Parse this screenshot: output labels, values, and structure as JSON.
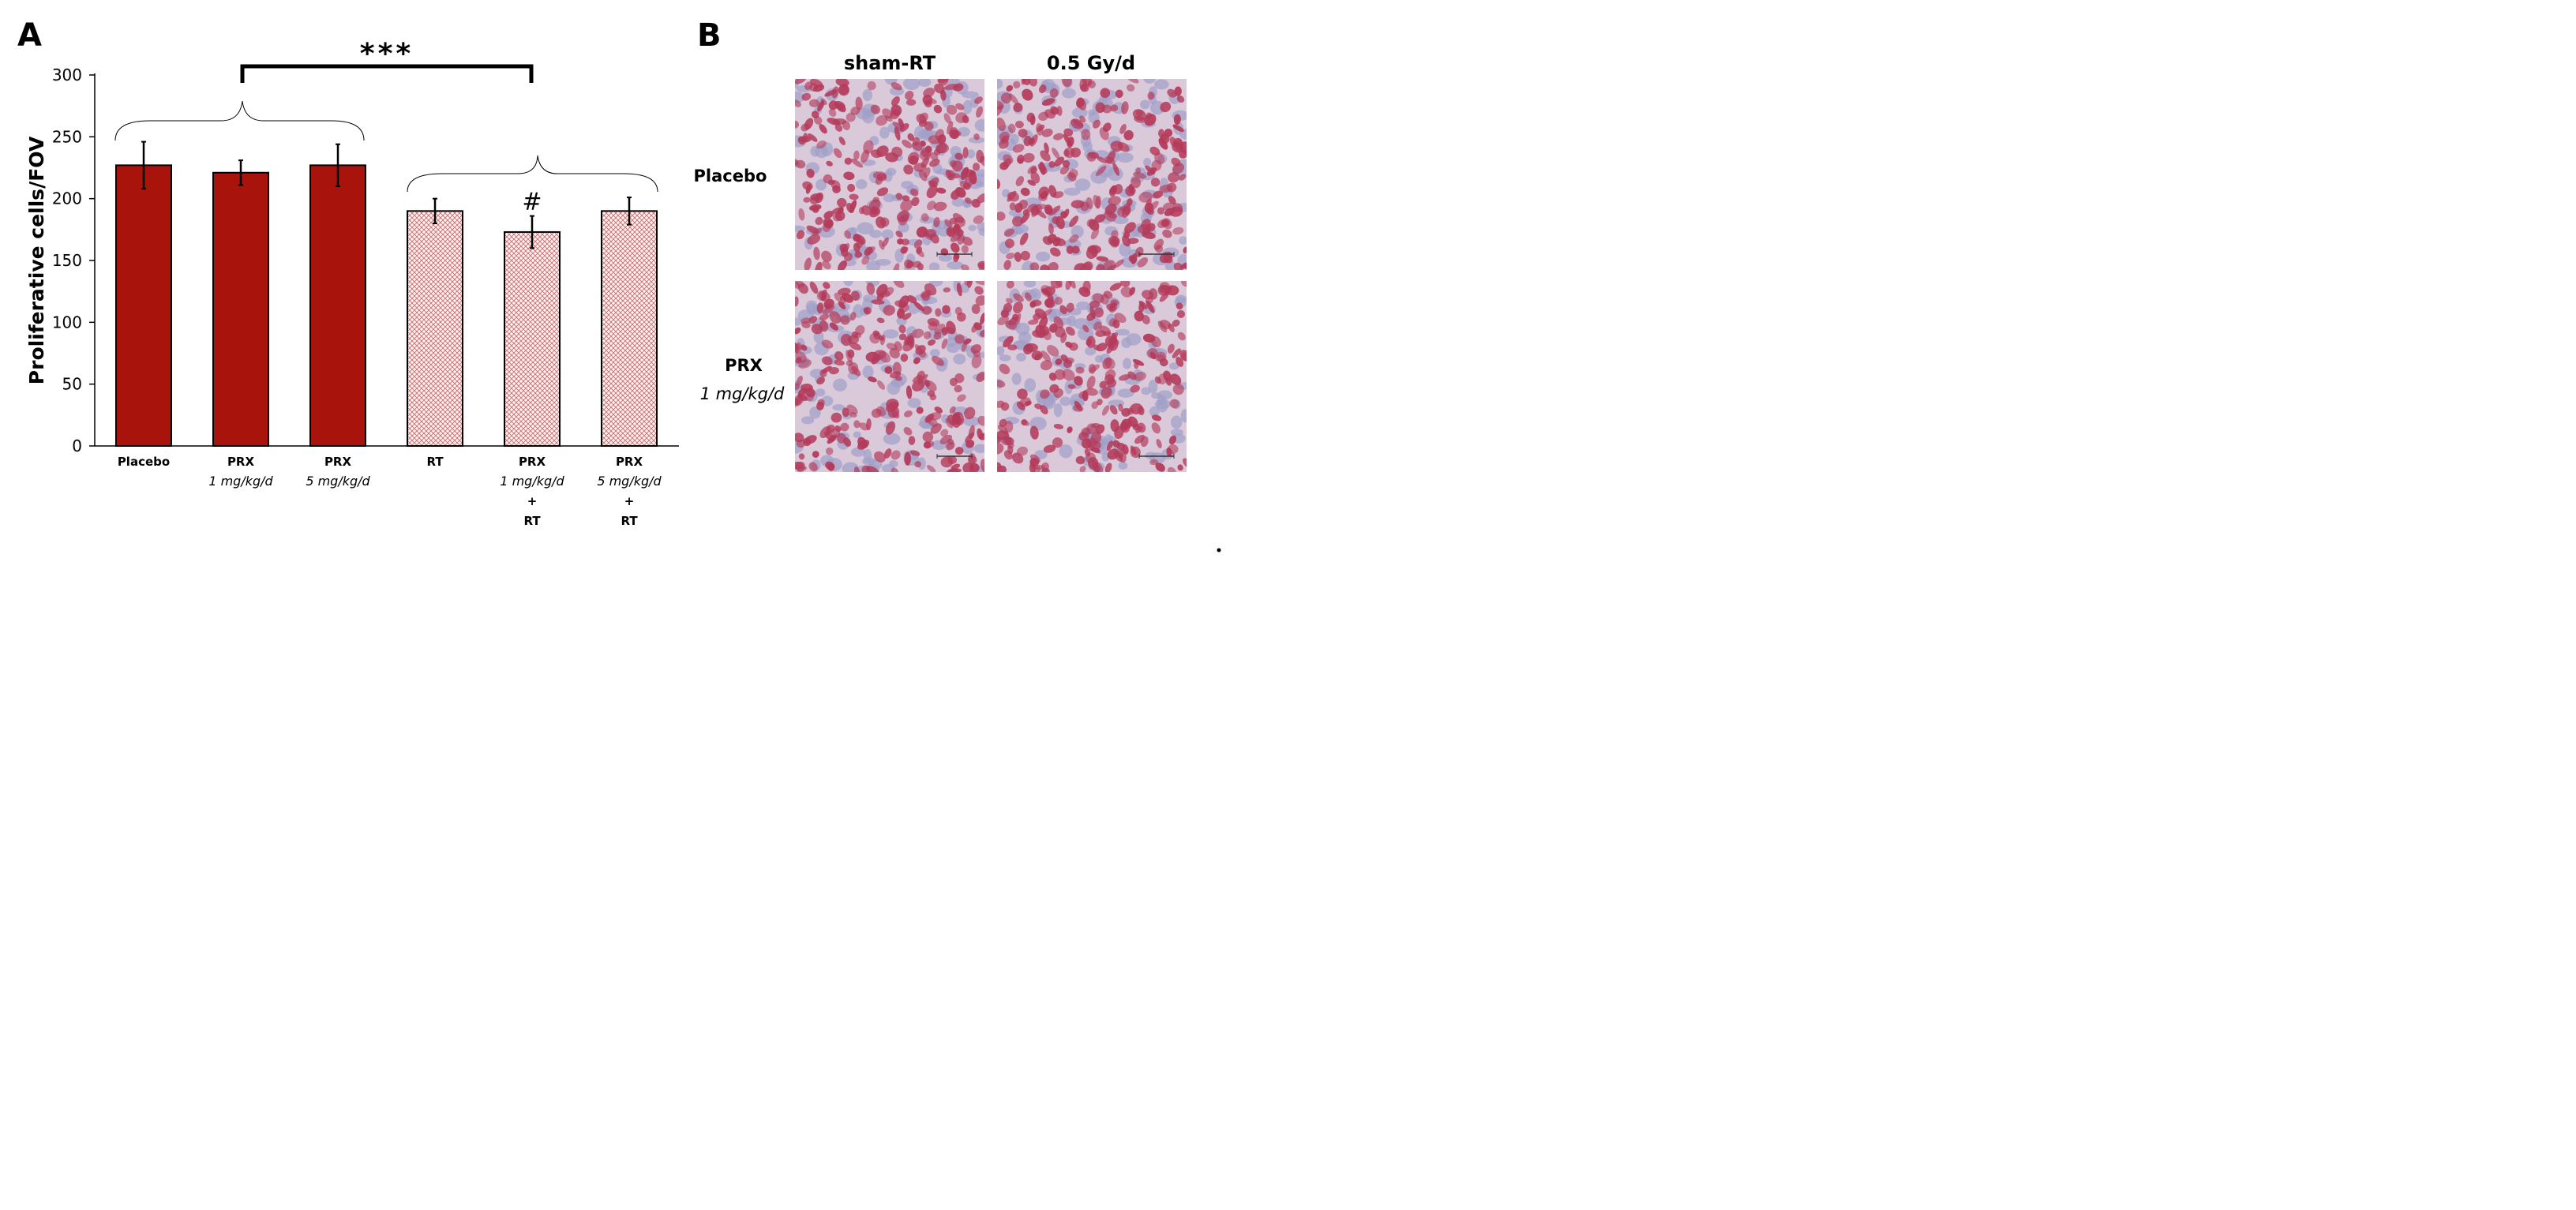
{
  "panel_a_label": "A",
  "panel_b_label": "B",
  "chart_data": {
    "type": "bar",
    "ylabel": "Proliferative cells/FOV",
    "xlabel": "",
    "ylim": [
      0,
      300
    ],
    "yticks": [
      0,
      50,
      100,
      150,
      200,
      250,
      300
    ],
    "grid": false,
    "legend": "none",
    "categories": [
      {
        "label": "Placebo",
        "sublabel": "",
        "extra": []
      },
      {
        "label": "PRX",
        "sublabel": "1 mg/kg/d",
        "extra": []
      },
      {
        "label": "PRX",
        "sublabel": "5 mg/kg/d",
        "extra": []
      },
      {
        "label": "RT",
        "sublabel": "",
        "extra": []
      },
      {
        "label": "PRX",
        "sublabel": "1 mg/kg/d",
        "extra": [
          "+",
          "RT"
        ]
      },
      {
        "label": "PRX",
        "sublabel": "5 mg/kg/d",
        "extra": [
          "+",
          "RT"
        ]
      }
    ],
    "values": [
      227,
      221,
      227,
      190,
      173,
      190
    ],
    "errors": [
      19,
      10,
      17,
      10,
      13,
      11
    ],
    "styles": [
      "solid",
      "solid",
      "solid",
      "hatched",
      "hatched",
      "hatched"
    ],
    "annotations": {
      "group_comparison": "***",
      "bar_marker": {
        "bar": 4,
        "text": "#"
      }
    },
    "colors": {
      "solid": "#a8130c",
      "hatch": "#c96a6a",
      "hatch_bg": "#fbf3f3"
    }
  },
  "panel_b": {
    "columns": [
      "sham-RT",
      "0.5 Gy/d"
    ],
    "rows": [
      {
        "label": "Placebo",
        "sublabel": ""
      },
      {
        "label": "PRX",
        "sublabel": "1 mg/kg/d"
      }
    ],
    "colors": {
      "tissue_bg": "#d9c9d9",
      "nuclei_red": "#b43a5a",
      "nuclei_blue": "#9fa0c8"
    }
  }
}
